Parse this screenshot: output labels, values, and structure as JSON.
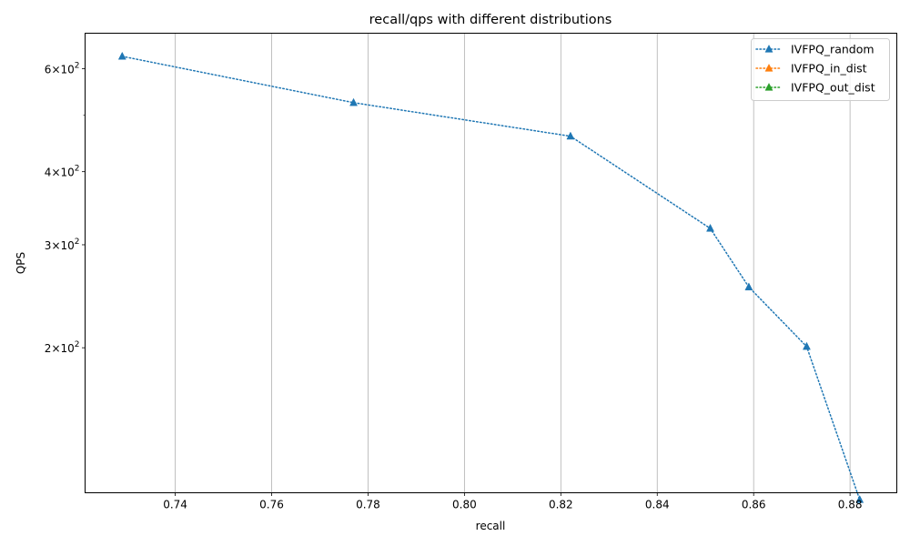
{
  "chart_data": {
    "type": "line",
    "title": "recall/qps with different distributions",
    "xlabel": "recall",
    "ylabel": "QPS",
    "xlim": [
      0.7213,
      0.8897
    ],
    "ylim": [
      113,
      690
    ],
    "yscale": "log",
    "grid": "x-axis vertical lines",
    "legend_position": "top-right",
    "x_ticks": [
      {
        "value": 0.74,
        "label": "0.74"
      },
      {
        "value": 0.76,
        "label": "0.76"
      },
      {
        "value": 0.78,
        "label": "0.78"
      },
      {
        "value": 0.8,
        "label": "0.80"
      },
      {
        "value": 0.82,
        "label": "0.82"
      },
      {
        "value": 0.84,
        "label": "0.84"
      },
      {
        "value": 0.86,
        "label": "0.86"
      },
      {
        "value": 0.88,
        "label": "0.88"
      }
    ],
    "y_major_ticks": [
      {
        "value": 200,
        "base": "2",
        "exp": "2"
      },
      {
        "value": 300,
        "base": "3",
        "exp": "2"
      },
      {
        "value": 400,
        "base": "4",
        "exp": "2"
      },
      {
        "value": 600,
        "base": "6",
        "exp": "2"
      }
    ],
    "y_minor_ticks": [
      500
    ],
    "series": [
      {
        "name": "IVFPQ_random",
        "color": "#1f77b4",
        "marker": "triangle-up",
        "linestyle": "dotted",
        "x": [
          0.729,
          0.777,
          0.822,
          0.851,
          0.859,
          0.871,
          0.882
        ],
        "y": [
          630,
          525,
          460,
          320,
          254,
          201,
          110
        ]
      },
      {
        "name": "IVFPQ_in_dist",
        "color": "#ff7f0e",
        "marker": "triangle-up",
        "linestyle": "dotted",
        "x": [],
        "y": []
      },
      {
        "name": "IVFPQ_out_dist",
        "color": "#2ca02c",
        "marker": "triangle-up",
        "linestyle": "dotted",
        "x": [],
        "y": []
      }
    ]
  }
}
